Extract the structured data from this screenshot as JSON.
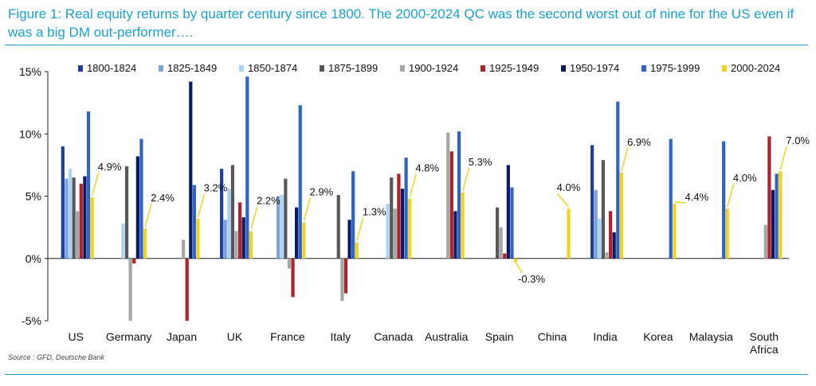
{
  "figure": {
    "title": "Figure 1: Real equity returns by quarter century since 1800. The 2000-2024 QC was the second worst out of nine for the US even if was a big DM out-performer….",
    "source": "Source : GFD, Deutsche Bank"
  },
  "chart_data": {
    "type": "bar",
    "ylim": [
      -5,
      15
    ],
    "yticks": [
      -5,
      0,
      5,
      10,
      15
    ],
    "ytick_labels": [
      "-5%",
      "0%",
      "5%",
      "10%",
      "15%"
    ],
    "grid": false,
    "legend_position": "top",
    "categories": [
      "US",
      "Germany",
      "Japan",
      "UK",
      "France",
      "Italy",
      "Canada",
      "Australia",
      "Spain",
      "China",
      "India",
      "Korea",
      "Malaysia",
      "South Africa"
    ],
    "series": [
      {
        "name": "1800-1824",
        "color": "#1f3f99",
        "values": [
          9.0,
          null,
          null,
          7.2,
          null,
          null,
          null,
          null,
          null,
          null,
          9.1,
          null,
          null,
          null
        ]
      },
      {
        "name": "1825-1849",
        "color": "#7f9fdb",
        "values": [
          6.4,
          null,
          null,
          3.1,
          5.0,
          null,
          null,
          null,
          null,
          null,
          5.5,
          null,
          null,
          null
        ]
      },
      {
        "name": "1850-1874",
        "color": "#a9d4f2",
        "values": [
          7.2,
          2.8,
          null,
          5.6,
          5.1,
          null,
          4.4,
          null,
          null,
          null,
          3.2,
          null,
          null,
          null
        ]
      },
      {
        "name": "1875-1899",
        "color": "#585858",
        "values": [
          6.5,
          7.4,
          null,
          7.5,
          6.4,
          5.1,
          6.5,
          null,
          4.1,
          null,
          7.9,
          null,
          null,
          null
        ]
      },
      {
        "name": "1900-1924",
        "color": "#a6a6a6",
        "values": [
          3.8,
          -5.0,
          1.5,
          2.2,
          -0.8,
          -3.4,
          4.0,
          10.1,
          2.5,
          null,
          0.5,
          null,
          null,
          2.7
        ]
      },
      {
        "name": "1925-1949",
        "color": "#b0212a",
        "values": [
          6.0,
          -0.4,
          -5.0,
          4.5,
          -3.1,
          -2.8,
          6.8,
          8.6,
          0.4,
          null,
          3.8,
          null,
          null,
          9.8
        ]
      },
      {
        "name": "1950-1974",
        "color": "#0a1a66",
        "values": [
          6.6,
          8.2,
          14.2,
          3.3,
          4.1,
          3.1,
          5.6,
          3.8,
          7.5,
          null,
          2.1,
          null,
          null,
          5.5
        ]
      },
      {
        "name": "1975-1999",
        "color": "#2f63c4",
        "values": [
          11.8,
          9.6,
          5.9,
          14.6,
          12.3,
          7.0,
          8.1,
          10.2,
          5.7,
          null,
          12.6,
          9.6,
          9.4,
          6.8
        ]
      },
      {
        "name": "2000-2024",
        "color": "#f2d21c",
        "values": [
          4.9,
          2.4,
          3.2,
          2.2,
          2.9,
          1.3,
          4.8,
          5.3,
          -0.3,
          4.0,
          6.9,
          4.4,
          4.0,
          7.0
        ]
      }
    ],
    "annotations": [
      "4.9%",
      "2.4%",
      "3.2%",
      "2.2%",
      "2.9%",
      "1.3%",
      "4.8%",
      "5.3%",
      "-0.3%",
      "4.0%",
      "6.9%",
      "4.4%",
      "4.0%",
      "7.0%"
    ]
  }
}
